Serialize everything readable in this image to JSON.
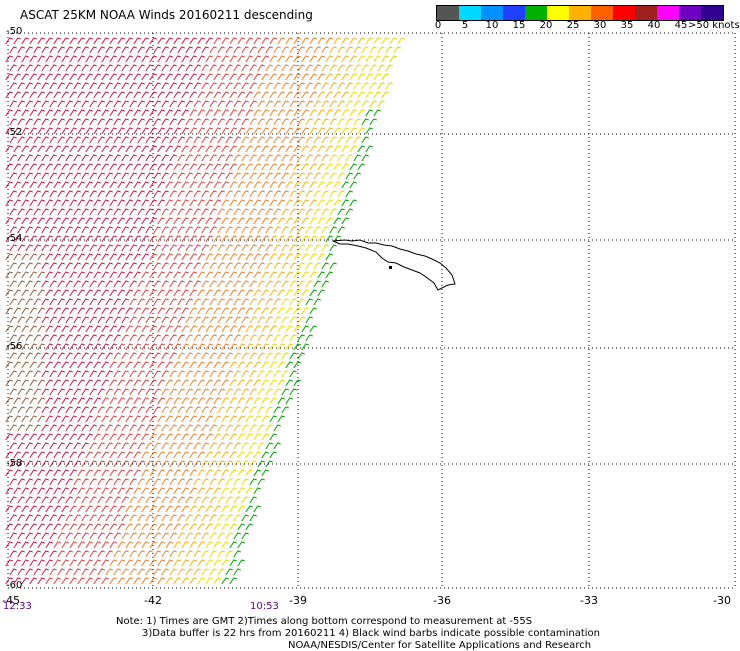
{
  "title": "ASCAT 25KM NOAA Winds 20160211 descending",
  "colorbar": {
    "labels": [
      "0",
      "5",
      "10",
      "15",
      "20",
      "25",
      "30",
      "35",
      "40",
      "45",
      ">50 knots"
    ],
    "colors": [
      "#555555",
      "#00d8ff",
      "#0090ff",
      "#2040ff",
      "#00b000",
      "#ffff00",
      "#ffb000",
      "#ff6000",
      "#ff0000",
      "#a02020",
      "#ff00ff",
      "#7000c0",
      "#300090"
    ]
  },
  "axes": {
    "lat_labels": [
      "-50",
      "-52",
      "-54",
      "-56",
      "-58",
      "-60"
    ],
    "lon_labels": [
      "-45",
      "-42",
      "-39",
      "-36",
      "-33",
      "-30"
    ]
  },
  "times": [
    "12:33",
    "10:53"
  ],
  "notes": [
    "Note: 1) Times are GMT 2)Times along bottom correspond to measurement at -55S",
    "3)Data buffer is 22 hrs from 20160211 4) Black wind barbs indicate possible contamination",
    "NOAA/NESDIS/Center for Satellite Applications and Research"
  ],
  "colors": {
    "grid": "#000000",
    "time": "#5a0080"
  }
}
